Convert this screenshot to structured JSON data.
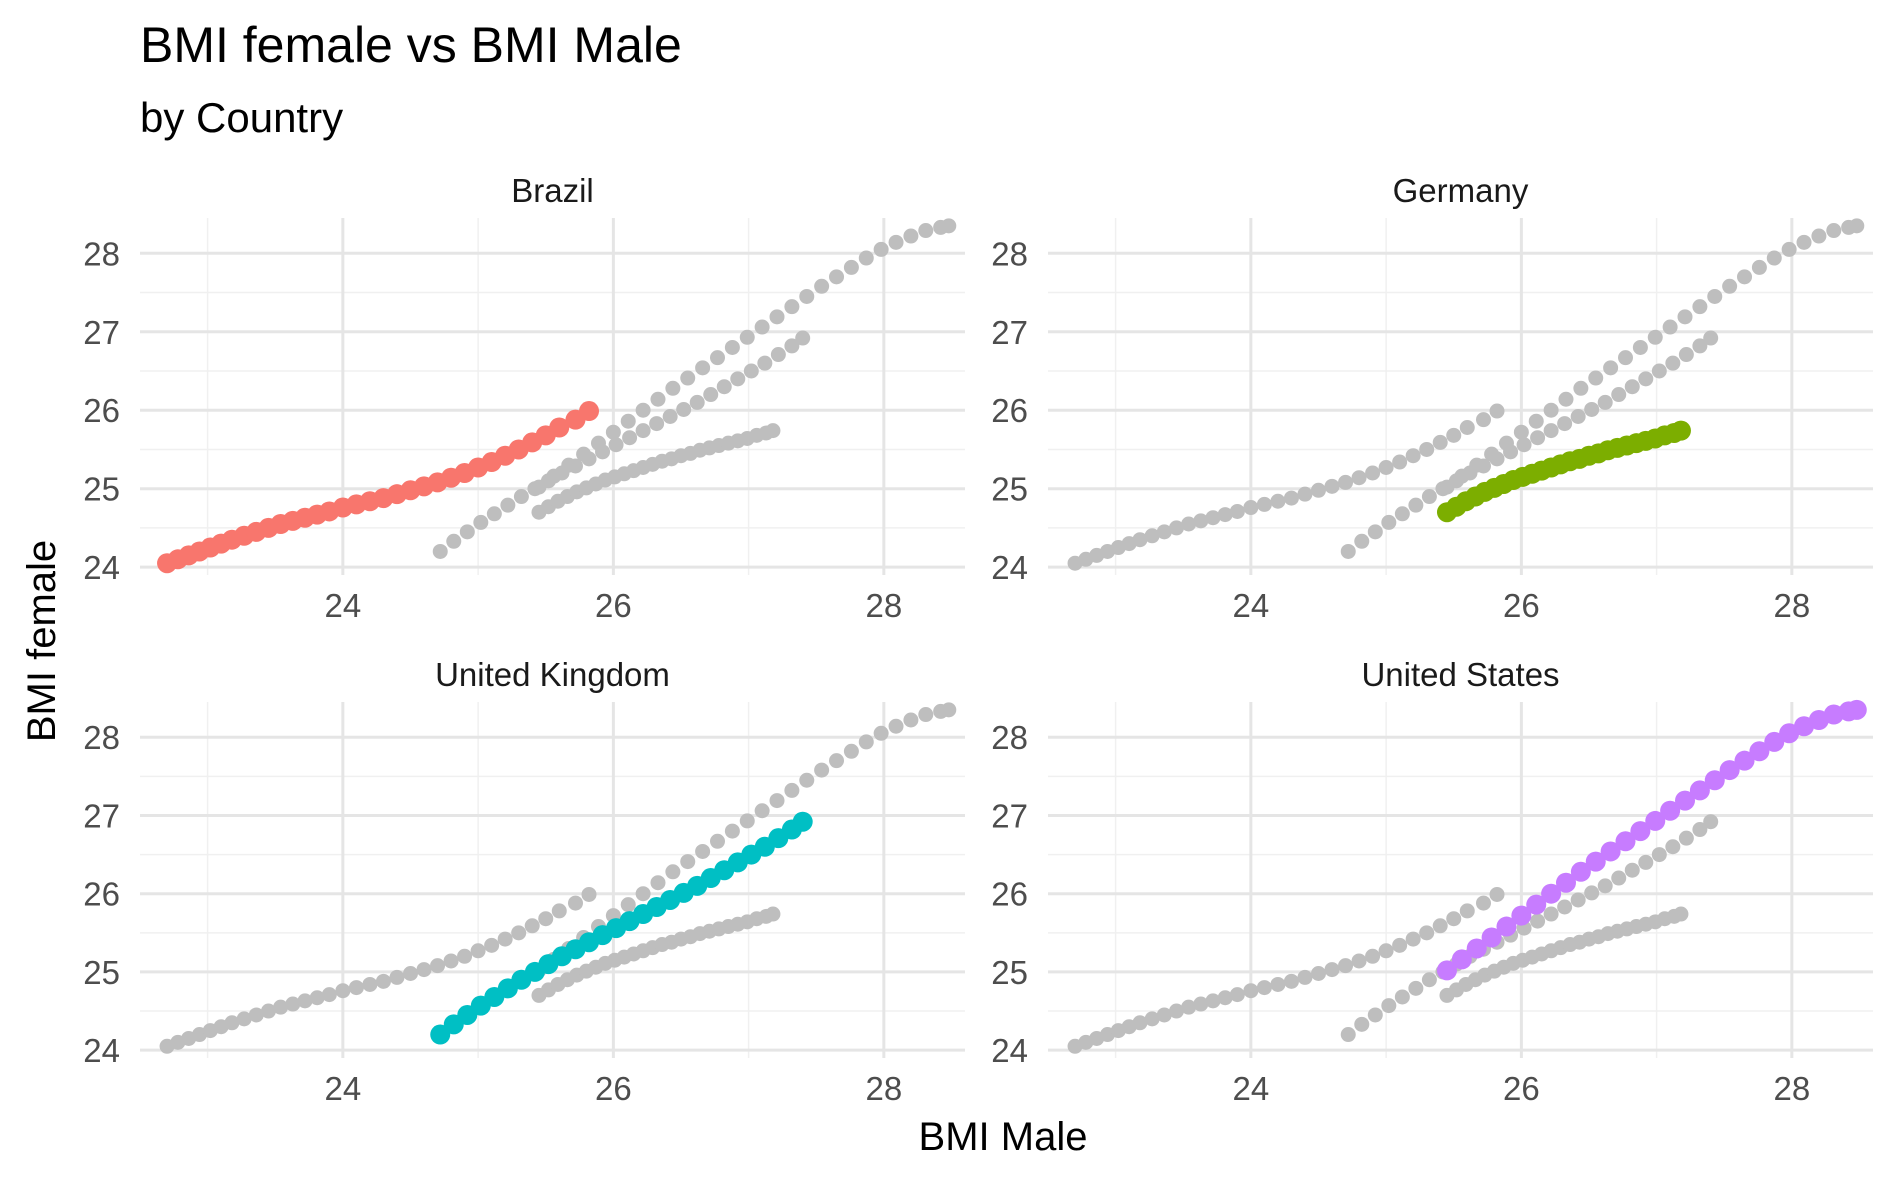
{
  "chart_data": {
    "type": "scatter",
    "title": "BMI female vs BMI Male",
    "subtitle": "by Country",
    "xlabel": "BMI Male",
    "ylabel": "BMI female",
    "xlim": [
      22.5,
      28.6
    ],
    "ylim": [
      23.9,
      28.45
    ],
    "xticks": [
      "24",
      "26",
      "28"
    ],
    "yticks": [
      "24",
      "25",
      "26",
      "27",
      "28"
    ],
    "grid": true,
    "legend": "none",
    "background_color": "#bebebe",
    "colors": {
      "Brazil": "#f8766d",
      "Germany": "#7cae00",
      "United Kingdom": "#00bfc4",
      "United States": "#c77cff"
    },
    "series": [
      {
        "name": "Brazil",
        "x": [
          22.7,
          22.78,
          22.86,
          22.94,
          23.02,
          23.1,
          23.18,
          23.27,
          23.36,
          23.45,
          23.54,
          23.63,
          23.72,
          23.81,
          23.9,
          24.0,
          24.1,
          24.2,
          24.3,
          24.4,
          24.5,
          24.6,
          24.7,
          24.8,
          24.9,
          25.0,
          25.1,
          25.2,
          25.3,
          25.4,
          25.5,
          25.6,
          25.72,
          25.82
        ],
        "y": [
          24.05,
          24.1,
          24.15,
          24.2,
          24.25,
          24.3,
          24.35,
          24.4,
          24.45,
          24.5,
          24.55,
          24.59,
          24.63,
          24.67,
          24.71,
          24.76,
          24.8,
          24.84,
          24.88,
          24.93,
          24.98,
          25.03,
          25.08,
          25.14,
          25.2,
          25.27,
          25.34,
          25.42,
          25.5,
          25.59,
          25.68,
          25.78,
          25.88,
          25.99
        ]
      },
      {
        "name": "Germany",
        "x": [
          25.45,
          25.52,
          25.59,
          25.66,
          25.73,
          25.8,
          25.87,
          25.94,
          26.01,
          26.08,
          26.15,
          26.22,
          26.29,
          26.36,
          26.43,
          26.5,
          26.57,
          26.64,
          26.71,
          26.78,
          26.85,
          26.92,
          26.99,
          27.06,
          27.13,
          27.18
        ],
        "y": [
          24.7,
          24.77,
          24.84,
          24.9,
          24.96,
          25.01,
          25.06,
          25.11,
          25.15,
          25.19,
          25.23,
          25.27,
          25.31,
          25.35,
          25.38,
          25.42,
          25.45,
          25.49,
          25.52,
          25.55,
          25.58,
          25.61,
          25.64,
          25.68,
          25.71,
          25.74
        ]
      },
      {
        "name": "United Kingdom",
        "x": [
          24.72,
          24.82,
          24.92,
          25.02,
          25.12,
          25.22,
          25.32,
          25.42,
          25.52,
          25.62,
          25.72,
          25.82,
          25.92,
          26.02,
          26.12,
          26.22,
          26.32,
          26.42,
          26.52,
          26.62,
          26.72,
          26.82,
          26.92,
          27.02,
          27.12,
          27.22,
          27.32,
          27.4
        ],
        "y": [
          24.2,
          24.33,
          24.45,
          24.57,
          24.68,
          24.79,
          24.9,
          25.0,
          25.1,
          25.2,
          25.29,
          25.38,
          25.47,
          25.56,
          25.65,
          25.74,
          25.83,
          25.92,
          26.01,
          26.1,
          26.2,
          26.3,
          26.4,
          26.5,
          26.6,
          26.71,
          26.82,
          26.92
        ]
      },
      {
        "name": "United States",
        "x": [
          25.45,
          25.56,
          25.67,
          25.78,
          25.89,
          26.0,
          26.11,
          26.22,
          26.33,
          26.44,
          26.55,
          26.66,
          26.77,
          26.88,
          26.99,
          27.1,
          27.21,
          27.32,
          27.43,
          27.54,
          27.65,
          27.76,
          27.87,
          27.98,
          28.09,
          28.2,
          28.31,
          28.42,
          28.48
        ],
        "y": [
          25.02,
          25.16,
          25.3,
          25.44,
          25.58,
          25.72,
          25.86,
          26.0,
          26.14,
          26.28,
          26.41,
          26.54,
          26.67,
          26.8,
          26.93,
          27.06,
          27.19,
          27.32,
          27.45,
          27.58,
          27.7,
          27.82,
          27.94,
          28.05,
          28.14,
          28.22,
          28.29,
          28.33,
          28.35
        ]
      }
    ],
    "panels": [
      "Brazil",
      "Germany",
      "United Kingdom",
      "United States"
    ]
  }
}
